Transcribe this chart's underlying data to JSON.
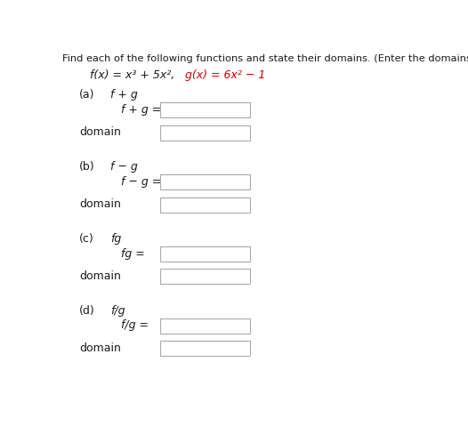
{
  "bg_color": "#ffffff",
  "header_text": "Find each of the following functions and state their domains. (Enter the domains in interval notation.)",
  "fx_text": "f(x) = x³ + 5x²,   g(x) = 6x² − 1",
  "fx_black": "f(x) = x³ + 5x²,  ",
  "gx_red": "g(x) = 6x² − 1",
  "sections": [
    {
      "label": "(a)",
      "italic_label": "f + g",
      "lhs": "f + g ="
    },
    {
      "label": "(b)",
      "italic_label": "f − g",
      "lhs": "f − g ="
    },
    {
      "label": "(c)",
      "italic_label": "fg",
      "lhs": "fg ="
    },
    {
      "label": "(d)",
      "italic_label": "f/g",
      "lhs": "f/g ="
    }
  ],
  "text_color": "#1a1a1a",
  "red_color": "#cc0000",
  "header_fontsize": 8.2,
  "body_fontsize": 9.0,
  "box_color": "#aaaaaa",
  "box_facecolor": "#ffffff"
}
